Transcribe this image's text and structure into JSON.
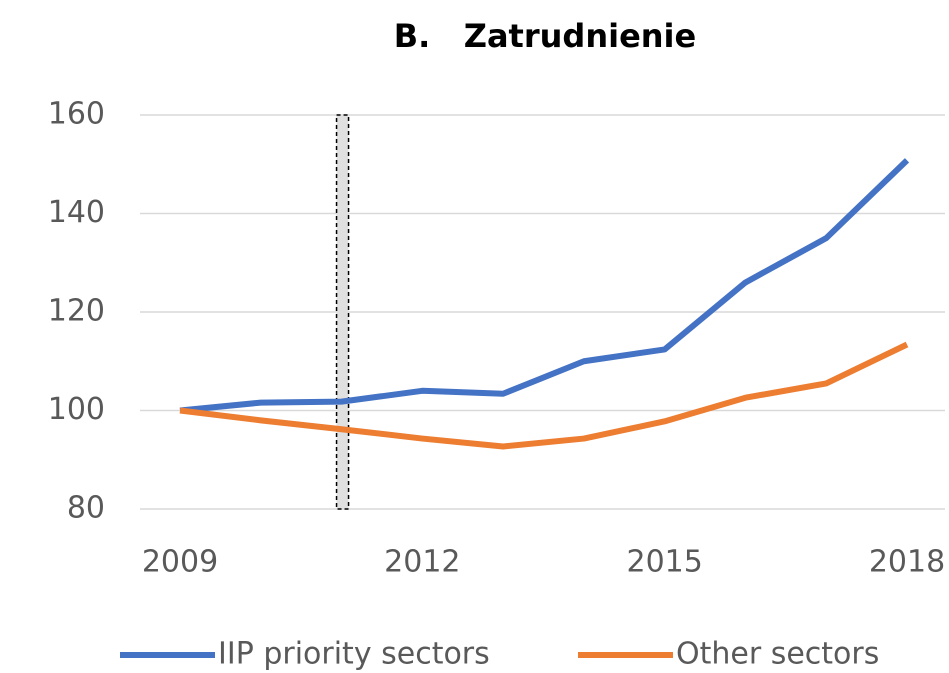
{
  "chart_data": {
    "type": "line",
    "title": "B.   Zatrudnienie",
    "x": [
      2009,
      2010,
      2011,
      2012,
      2013,
      2014,
      2015,
      2016,
      2017,
      2018
    ],
    "series": [
      {
        "name": "IIP priority sectors",
        "color": "#4472c4",
        "values": [
          100,
          101.6,
          101.8,
          104,
          103.4,
          110,
          112.4,
          126,
          135,
          150.8
        ]
      },
      {
        "name": "Other sectors",
        "color": "#ed7d31",
        "values": [
          100,
          98,
          96.2,
          94.3,
          92.7,
          94.3,
          97.8,
          102.6,
          105.5,
          113.4
        ]
      }
    ],
    "xlim": [
      2009,
      2018
    ],
    "xticks": [
      2009,
      2012,
      2015,
      2018
    ],
    "ylim": [
      80,
      160
    ],
    "yticks": [
      80,
      100,
      120,
      140,
      160
    ],
    "grid": true,
    "legend": "bottom",
    "highlight_x": 2011
  }
}
